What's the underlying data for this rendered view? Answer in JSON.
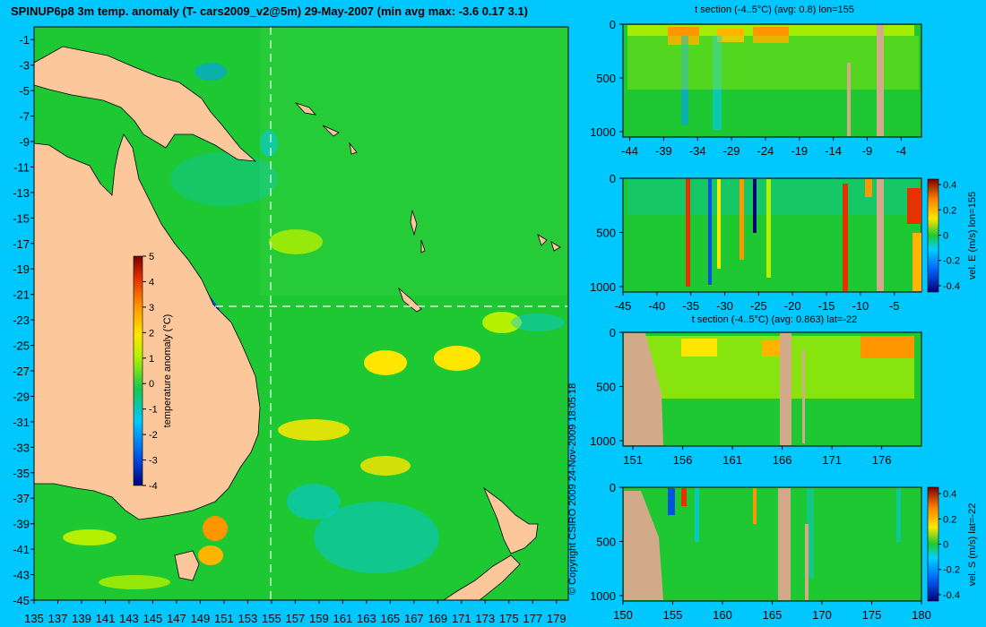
{
  "colors": {
    "background": "#00c8ff",
    "ocean": "#1ec832",
    "land": "#fbc79b",
    "section_land": "#d2aa8a"
  },
  "main_map": {
    "title": "SPINUP6p8 3m temp. anomaly (T- cars2009_v2@5m) 29-May-2007 (min avg max: -3.6 0.17 3.1)",
    "colorbar": {
      "label": "temperature anomaly (°C)",
      "ticks": [
        "5",
        "4",
        "3",
        "2",
        "1",
        "0",
        "-1",
        "-2",
        "-3",
        "-4"
      ]
    },
    "credit": "© Copyright CSIRO 2009   24-Nov-2009 18:05:18"
  },
  "chart_data": [
    {
      "type": "heatmap",
      "title": "SPINUP6p8 3m temp. anomaly (T- cars2009_v2@5m) 29-May-2007 (min avg max: -3.6 0.17 3.1)",
      "xlabel": "",
      "ylabel": "",
      "xlim": [
        135,
        180
      ],
      "ylim": [
        -45,
        0
      ],
      "x_ticks": [
        "135",
        "137",
        "139",
        "141",
        "143",
        "145",
        "147",
        "149",
        "151",
        "153",
        "155",
        "157",
        "159",
        "161",
        "163",
        "165",
        "167",
        "169",
        "171",
        "173",
        "175",
        "177",
        "179"
      ],
      "y_ticks": [
        "-1",
        "-3",
        "-5",
        "-7",
        "-9",
        "-11",
        "-13",
        "-15",
        "-17",
        "-19",
        "-21",
        "-23",
        "-25",
        "-27",
        "-29",
        "-31",
        "-33",
        "-35",
        "-37",
        "-39",
        "-41",
        "-43",
        "-45"
      ],
      "colorbar_range": [
        -4,
        5
      ],
      "stats": {
        "min": -3.6,
        "avg": 0.17,
        "max": 3.1
      },
      "section_lines": {
        "lon": 155,
        "lat": -22
      }
    },
    {
      "type": "heatmap",
      "title": "t section (-4..5°C) (avg: 0.8) lon=155",
      "x_ticks": [
        "-44",
        "-39",
        "-34",
        "-29",
        "-24",
        "-19",
        "-14",
        "-9",
        "-4"
      ],
      "y_ticks": [
        "0",
        "500",
        "1000"
      ],
      "xlim": [
        -45,
        -1
      ],
      "ylim": [
        1050,
        0
      ]
    },
    {
      "type": "heatmap",
      "title": "",
      "colorbar_label": "vel. E (m/s) lon=155",
      "x_ticks": [
        "-45",
        "-40",
        "-35",
        "-30",
        "-25",
        "-20",
        "-15",
        "-10",
        "-5"
      ],
      "y_ticks": [
        "0",
        "500",
        "1000"
      ],
      "xlim": [
        -45,
        -1
      ],
      "ylim": [
        1050,
        0
      ],
      "colorbar_ticks": [
        "0.4",
        "0.2",
        "0",
        "-0.2",
        "-0.4"
      ]
    },
    {
      "type": "heatmap",
      "title": "t section (-4..5°C) (avg: 0.863) lat=-22",
      "x_ticks": [
        "151",
        "156",
        "161",
        "166",
        "171",
        "176"
      ],
      "y_ticks": [
        "0",
        "500",
        "1000"
      ],
      "xlim": [
        150,
        180
      ],
      "ylim": [
        1050,
        0
      ]
    },
    {
      "type": "heatmap",
      "title": "",
      "colorbar_label": "vel. S (m/s) lat=-22",
      "x_ticks": [
        "150",
        "155",
        "160",
        "165",
        "170",
        "175",
        "180"
      ],
      "y_ticks": [
        "0",
        "500",
        "1000"
      ],
      "xlim": [
        150,
        180
      ],
      "ylim": [
        1050,
        0
      ],
      "colorbar_ticks": [
        "0.4",
        "0.2",
        "0",
        "-0.2",
        "-0.4"
      ]
    }
  ]
}
